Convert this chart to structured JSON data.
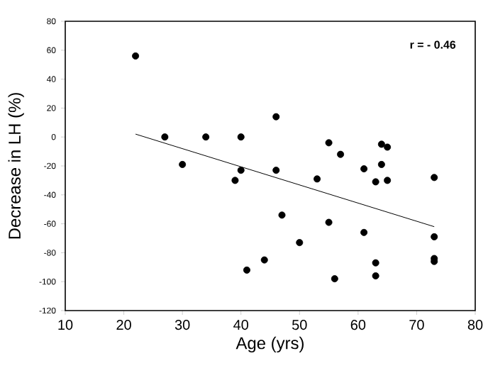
{
  "chart_data": {
    "type": "scatter",
    "xlabel": "Age (yrs)",
    "ylabel": "Decrease in LH (%)",
    "annotations": [
      "r = - 0.46"
    ],
    "series": [
      {
        "color": "#000000",
        "marker": "circle",
        "x": [
          22,
          27,
          30,
          34,
          39,
          40,
          40,
          41,
          44,
          46,
          46,
          47,
          50,
          53,
          55,
          55,
          56,
          57,
          61,
          61,
          63,
          63,
          63,
          64,
          64,
          65,
          65,
          73,
          73,
          73,
          73
        ],
        "values": [
          56,
          0,
          -19,
          0,
          -30,
          0,
          -23,
          -92,
          -85,
          14,
          -23,
          -54,
          -73,
          -29,
          -4,
          -59,
          -98,
          -12,
          -22,
          -66,
          -31,
          -87,
          -96,
          -5,
          -19,
          -7,
          -30,
          -28,
          -69,
          -84,
          -86
        ]
      },
      {
        "type": "line",
        "color": "#000000",
        "marker": "none",
        "line_style": "solid",
        "x": [
          22,
          73
        ],
        "values": [
          2,
          -62
        ]
      }
    ],
    "xlim": [
      10,
      80
    ],
    "ylim": [
      -120,
      80
    ],
    "xticks": [
      10,
      20,
      30,
      40,
      50,
      60,
      70,
      80
    ],
    "yticks": [
      -120,
      -100,
      -80,
      -60,
      -40,
      -20,
      0,
      20,
      40,
      60,
      80
    ],
    "grid": false
  }
}
